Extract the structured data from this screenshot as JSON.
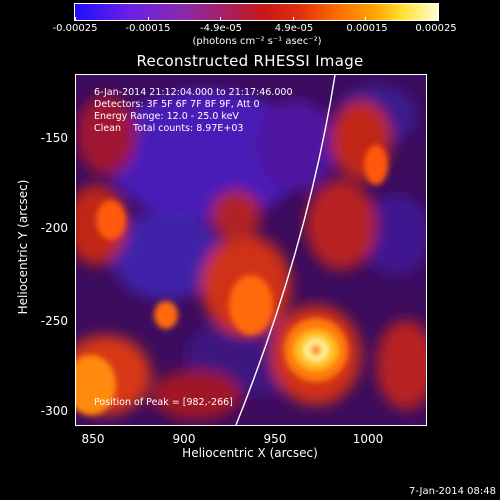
{
  "colorbar": {
    "tick_labels": [
      "-0.00025",
      "-0.00015",
      "-4.9e-05",
      "4.9e-05",
      "0.00015",
      "0.00025"
    ],
    "units": "(photons cm⁻² s⁻¹ asec⁻²)",
    "color_low": "#1e10ff",
    "color_high": "#ffffcf"
  },
  "title": "Reconstructed RHESSI Image",
  "info": {
    "time_range": "6-Jan-2014 21:12:04.000 to 21:17:46.000",
    "detectors": "Detectors: 3F 5F 6F 7F 8F 9F, Att 0",
    "energy": "Energy Range: 12.0 - 25.0 keV",
    "clean": "Clean    Total counts: 8.97E+03"
  },
  "peak": "Position of Peak = [982,-266]",
  "axes": {
    "xlabel": "Heliocentric X (arcsec)",
    "ylabel": "Heliocentric Y (arcsec)",
    "x_ticks": [
      "850",
      "900",
      "950",
      "1000"
    ],
    "y_ticks": [
      "-150",
      "-200",
      "-250",
      "-300"
    ],
    "xlim": [
      838,
      1032
    ],
    "ylim": [
      -306,
      -111
    ]
  },
  "datestamp": "7-Jan-2014 08:48",
  "chart_data": {
    "type": "heatmap",
    "title": "Reconstructed RHESSI Image",
    "xlabel": "Heliocentric X (arcsec)",
    "ylabel": "Heliocentric Y (arcsec)",
    "xlim": [
      838,
      1032
    ],
    "ylim": [
      -306,
      -111
    ],
    "peak": [
      982,
      -266
    ]
  }
}
